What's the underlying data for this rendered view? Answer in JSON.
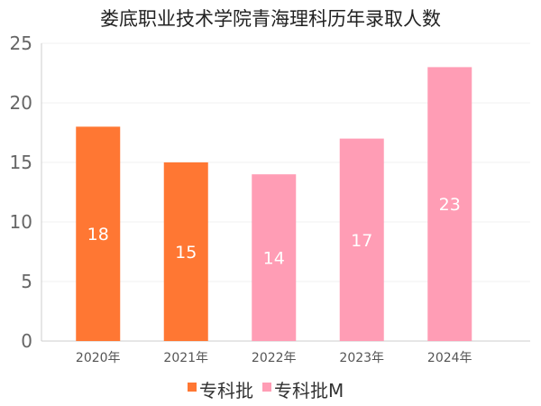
{
  "chart_data": {
    "type": "bar",
    "title": "娄底职业技术学院青海理科历年录取人数",
    "categories": [
      "2020年",
      "2021年",
      "2022年",
      "2023年",
      "2024年"
    ],
    "values": [
      18,
      15,
      14,
      17,
      23
    ],
    "bar_series": [
      "专科批",
      "专科批",
      "专科批M",
      "专科批M",
      "专科批M"
    ],
    "ylim": [
      0,
      25
    ],
    "yticks": [
      0,
      5,
      10,
      15,
      20,
      25
    ],
    "xlabel": "",
    "ylabel": "",
    "grid": true,
    "legend": [
      {
        "name": "专科批",
        "color": "#ff7733"
      },
      {
        "name": "专科批M",
        "color": "#ff9db5"
      }
    ],
    "legend_position": "bottom"
  }
}
